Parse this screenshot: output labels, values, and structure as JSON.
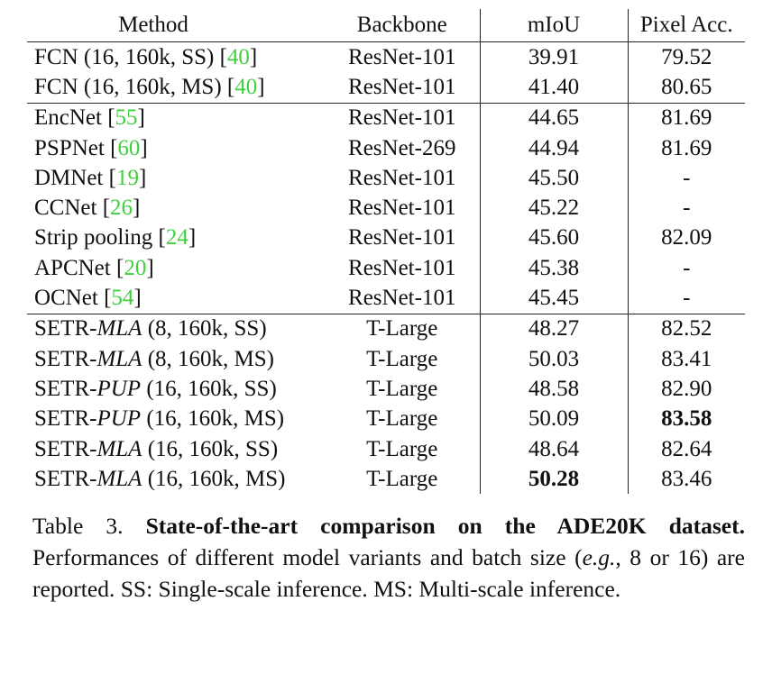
{
  "table": {
    "headers": [
      "Method",
      "Backbone",
      "mIoU",
      "Pixel Acc."
    ],
    "groups": [
      [
        {
          "name": "FCN (16, 160k, SS)",
          "cite": "40",
          "backbone": "ResNet-101",
          "miou": "39.91",
          "pixacc": "79.52"
        },
        {
          "name": "FCN (16, 160k, MS)",
          "cite": "40",
          "backbone": "ResNet-101",
          "miou": "41.40",
          "pixacc": "80.65"
        }
      ],
      [
        {
          "name": "EncNet",
          "cite": "55",
          "backbone": "ResNet-101",
          "miou": "44.65",
          "pixacc": "81.69"
        },
        {
          "name": "PSPNet",
          "cite": "60",
          "backbone": "ResNet-269",
          "miou": "44.94",
          "pixacc": "81.69"
        },
        {
          "name": "DMNet",
          "cite": "19",
          "backbone": "ResNet-101",
          "miou": "45.50",
          "pixacc": "-"
        },
        {
          "name": "CCNet",
          "cite": "26",
          "backbone": "ResNet-101",
          "miou": "45.22",
          "pixacc": "-"
        },
        {
          "name": "Strip pooling",
          "cite": "24",
          "backbone": "ResNet-101",
          "miou": "45.60",
          "pixacc": "82.09"
        },
        {
          "name": "APCNet",
          "cite": "20",
          "backbone": "ResNet-101",
          "miou": "45.38",
          "pixacc": "-"
        },
        {
          "name": "OCNet",
          "cite": "54",
          "backbone": "ResNet-101",
          "miou": "45.45",
          "pixacc": "-"
        }
      ],
      [
        {
          "prefix": "SETR-",
          "variant": "MLA",
          "suffix": " (8, 160k, SS)",
          "backbone": "T-Large",
          "miou": "48.27",
          "pixacc": "82.52"
        },
        {
          "prefix": "SETR-",
          "variant": "MLA",
          "suffix": " (8, 160k, MS)",
          "backbone": "T-Large",
          "miou": "50.03",
          "pixacc": "83.41"
        },
        {
          "prefix": "SETR-",
          "variant": "PUP",
          "suffix": " (16, 160k, SS)",
          "backbone": "T-Large",
          "miou": "48.58",
          "pixacc": "82.90"
        },
        {
          "prefix": "SETR-",
          "variant": "PUP",
          "suffix": " (16, 160k, MS)",
          "backbone": "T-Large",
          "miou": "50.09",
          "pixacc": "83.58",
          "bold_pixacc": true
        },
        {
          "prefix": "SETR-",
          "variant": "MLA",
          "suffix": " (16, 160k, SS)",
          "backbone": "T-Large",
          "miou": "48.64",
          "pixacc": "82.64"
        },
        {
          "prefix": "SETR-",
          "variant": "MLA",
          "suffix": " (16, 160k, MS)",
          "backbone": "T-Large",
          "miou": "50.28",
          "pixacc": "83.46",
          "bold_miou": true
        }
      ]
    ]
  },
  "caption": {
    "label": "Table 3.",
    "title": "State-of-the-art comparison on the ADE20K dataset.",
    "text_1": "Performances of different model variants and batch size (",
    "eg": "e.g.",
    "text_2": ", 8 or 16) are reported. SS: Single-scale inference. MS: Multi-scale inference."
  },
  "colors": {
    "citation": "#3fcf3f",
    "text": "#111111"
  }
}
